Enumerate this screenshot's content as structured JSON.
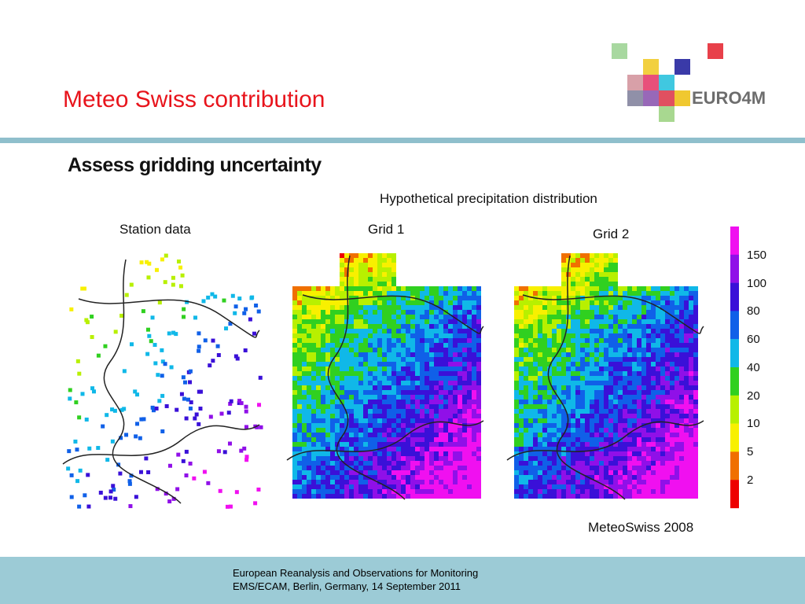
{
  "header": {
    "title": "Meteo Swiss contribution",
    "logo": "EURO4M"
  },
  "figure": {
    "heading": "Assess gridding uncertainty",
    "caption": "Hypothetical precipitation distribution",
    "panels": [
      "Station data",
      "Grid 1",
      "Grid 2"
    ],
    "colorbar_labels": [
      150,
      100,
      80,
      60,
      40,
      20,
      10,
      5,
      2
    ],
    "credit": "MeteoSwiss 2008"
  },
  "footer": {
    "lines": [
      "European Reanalysis and Observations for Monitoring",
      "EMS/ECAM, Berlin, Germany, 14 September 2011"
    ]
  }
}
